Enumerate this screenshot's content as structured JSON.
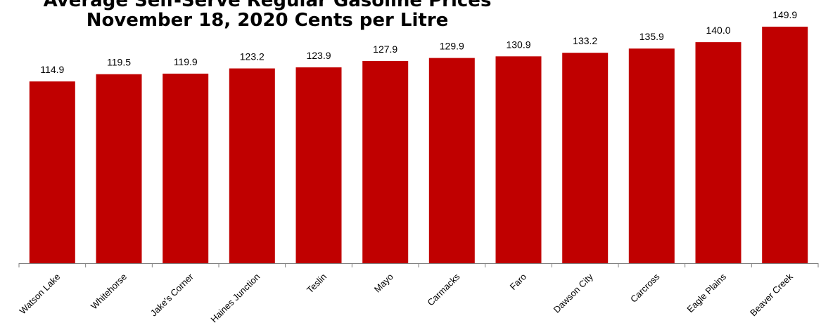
{
  "chart_data": {
    "type": "bar",
    "title_line1": "Average Self-Serve Regular Gasoline Prices",
    "title_line2": "November 18, 2020 Cents per Litre",
    "categories": [
      "Watson Lake",
      "Whitehorse",
      "Jake's Corner",
      "Haines Junction",
      "Teslin",
      "Mayo",
      "Carmacks",
      "Faro",
      "Dawson City",
      "Carcross",
      "Eagle Plains",
      "Beaver Creek"
    ],
    "values": [
      114.9,
      119.5,
      119.9,
      123.2,
      123.9,
      127.9,
      129.9,
      130.9,
      133.2,
      135.9,
      140.0,
      149.9
    ],
    "value_labels": [
      "114.9",
      "119.5",
      "119.9",
      "123.2",
      "123.9",
      "127.9",
      "129.9",
      "130.9",
      "133.2",
      "135.9",
      "140.0",
      "149.9"
    ],
    "bar_color": "#C00000",
    "axis_color": "#7f7f7f",
    "legend": "none",
    "grid": false
  }
}
